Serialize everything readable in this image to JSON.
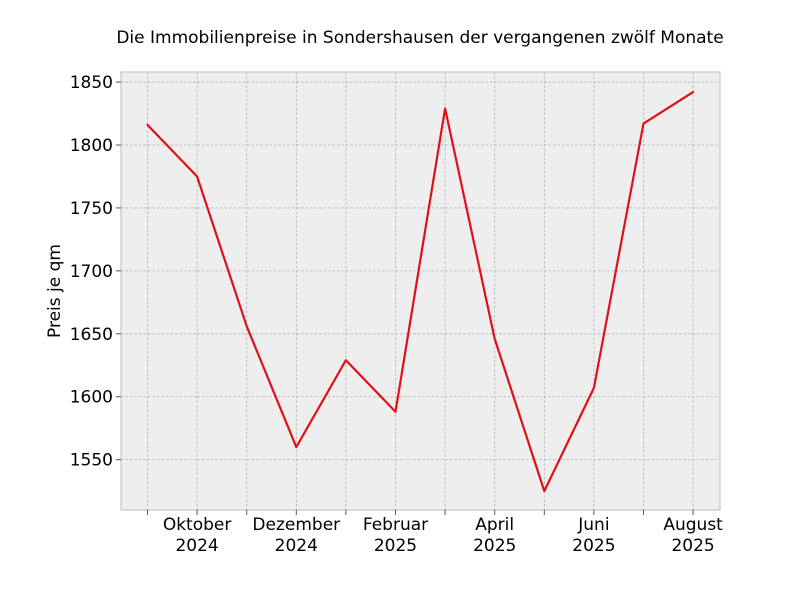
{
  "chart_data": {
    "type": "line",
    "title": "Die Immobilienpreise in Sondershausen der vergangenen zwölf Monate",
    "xlabel": "",
    "ylabel": "Preis je qm",
    "x": [
      "2024-09",
      "2024-10",
      "2024-11",
      "2024-12",
      "2025-01",
      "2025-02",
      "2025-03",
      "2025-04",
      "2025-05",
      "2025-06",
      "2025-07",
      "2025-08"
    ],
    "series": [
      {
        "color": "#e0101a",
        "values": [
          1816,
          1775,
          1656,
          1560,
          1629,
          1588,
          1829,
          1646,
          1525,
          1607,
          1817,
          1842
        ]
      }
    ],
    "ylim": [
      1510,
      1858
    ],
    "yticks": [
      1550,
      1600,
      1650,
      1700,
      1750,
      1800,
      1850
    ],
    "xtick_labels": [
      {
        "index": 1,
        "line1": "Oktober",
        "line2": "2024"
      },
      {
        "index": 3,
        "line1": "Dezember",
        "line2": "2024"
      },
      {
        "index": 5,
        "line1": "Februar",
        "line2": "2025"
      },
      {
        "index": 7,
        "line1": "April",
        "line2": "2025"
      },
      {
        "index": 9,
        "line1": "Juni",
        "line2": "2025"
      },
      {
        "index": 11,
        "line1": "August",
        "line2": "2025"
      }
    ],
    "grid": true,
    "background_color": "#eeeeee"
  }
}
